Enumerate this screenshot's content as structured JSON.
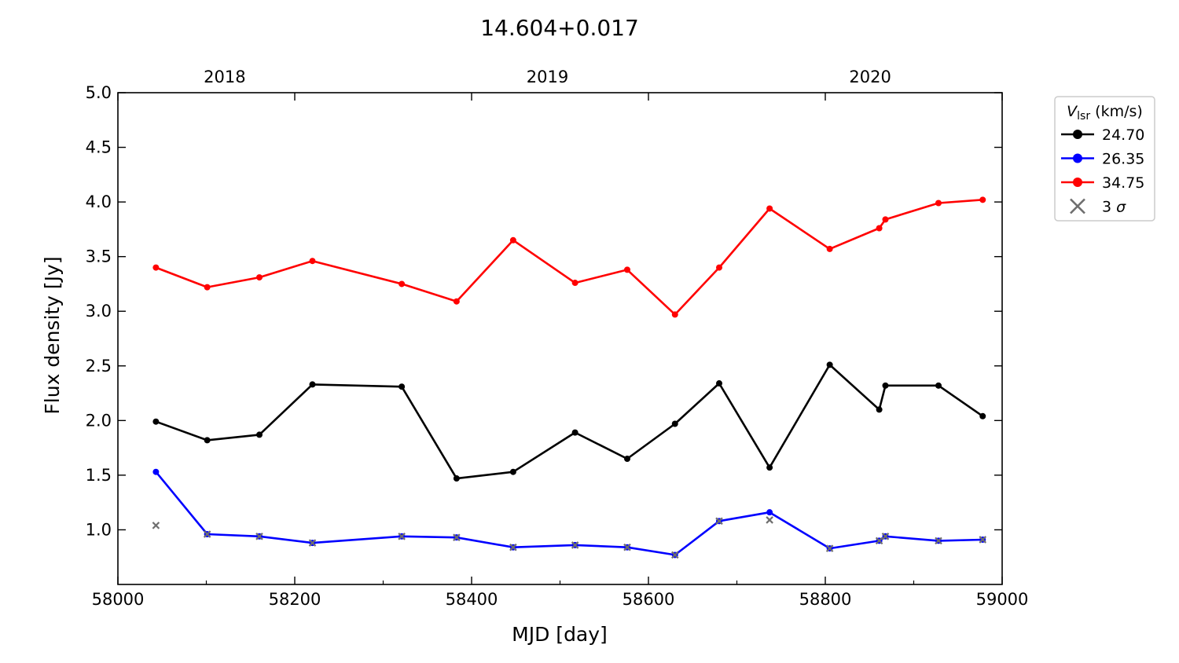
{
  "chart_data": {
    "type": "line",
    "title": "14.604+0.017",
    "xlabel": "MJD [day]",
    "ylabel": "Flux density [Jy]",
    "xlim": [
      58000,
      59000
    ],
    "ylim": [
      0.5,
      5.0
    ],
    "xticks": [
      "58000",
      "58200",
      "58400",
      "58600",
      "58800",
      "59000"
    ],
    "yticks": [
      "1.0",
      "1.5",
      "2.0",
      "2.5",
      "3.0",
      "3.5",
      "4.0",
      "4.5",
      "5.0"
    ],
    "top_axis": {
      "ticks": [
        {
          "label": "2018",
          "mjd": 58119
        },
        {
          "label": "2019",
          "mjd": 58484
        },
        {
          "label": "2020",
          "mjd": 58849
        }
      ]
    },
    "grid": false,
    "legend": {
      "placement": "outside-right",
      "title_main": "V",
      "title_sub": "lsr",
      "title_unit": "(km/s)",
      "sigma_label_num": "3",
      "sigma_label_sym": "σ"
    },
    "series": [
      {
        "name": "24.70",
        "color": "#000000",
        "x": [
          58043,
          58101,
          58160,
          58220,
          58321,
          58383,
          58447,
          58517,
          58576,
          58630,
          58680,
          58737,
          58805,
          58861,
          58868,
          58928,
          58978
        ],
        "y": [
          1.99,
          1.82,
          1.87,
          2.33,
          2.31,
          1.47,
          1.53,
          1.89,
          1.65,
          1.97,
          2.34,
          1.57,
          2.51,
          2.1,
          2.32,
          2.32,
          2.04
        ]
      },
      {
        "name": "26.35",
        "color": "#0000ff",
        "x": [
          58043,
          58101,
          58160,
          58220,
          58321,
          58383,
          58447,
          58517,
          58576,
          58630,
          58680,
          58737,
          58805,
          58861,
          58868,
          58928,
          58978
        ],
        "y": [
          1.53,
          0.96,
          0.94,
          0.88,
          0.94,
          0.93,
          0.84,
          0.86,
          0.84,
          0.77,
          1.08,
          1.16,
          0.83,
          0.9,
          0.94,
          0.9,
          0.91
        ]
      },
      {
        "name": "34.75",
        "color": "#ff0000",
        "x": [
          58043,
          58101,
          58160,
          58220,
          58321,
          58383,
          58447,
          58517,
          58576,
          58630,
          58680,
          58737,
          58805,
          58861,
          58868,
          58928,
          58978
        ],
        "y": [
          3.4,
          3.22,
          3.31,
          3.46,
          3.25,
          3.09,
          3.65,
          3.26,
          3.38,
          2.97,
          3.4,
          3.94,
          3.57,
          3.76,
          3.84,
          3.99,
          4.02
        ]
      }
    ],
    "sigma_markers": {
      "color": "#6e6e6e",
      "x": [
        58043,
        58101,
        58160,
        58220,
        58321,
        58383,
        58447,
        58517,
        58576,
        58630,
        58680,
        58737,
        58805,
        58861,
        58868,
        58928,
        58978
      ],
      "y": [
        1.04,
        0.96,
        0.94,
        0.88,
        0.94,
        0.93,
        0.84,
        0.86,
        0.84,
        0.77,
        1.08,
        1.09,
        0.83,
        0.9,
        0.94,
        0.9,
        0.91
      ]
    }
  }
}
